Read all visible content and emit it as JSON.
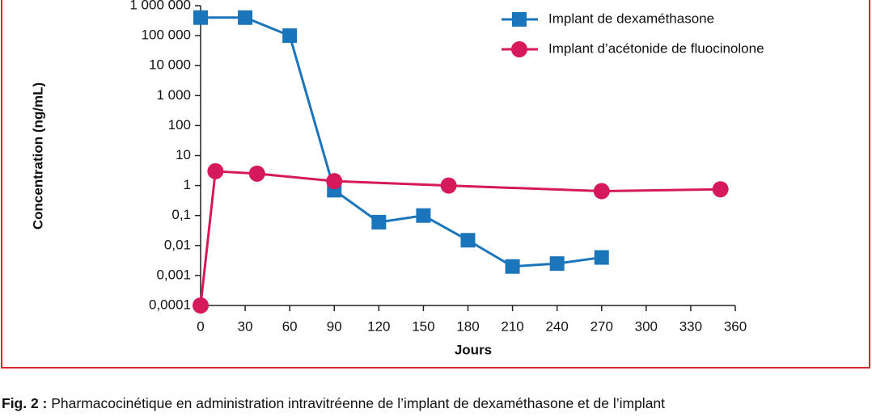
{
  "chart_data": {
    "type": "line",
    "y_scale": "log",
    "xlabel": "Jours",
    "ylabel": "Concentration (ng/mL)",
    "xlim": [
      0,
      360
    ],
    "xticks": [
      0,
      30,
      60,
      90,
      120,
      150,
      180,
      210,
      240,
      270,
      300,
      330,
      360
    ],
    "ylim": [
      0.0001,
      1000000
    ],
    "yticks": [
      {
        "value": 0.0001,
        "label": "0,0001"
      },
      {
        "value": 0.001,
        "label": "0,001"
      },
      {
        "value": 0.01,
        "label": "0,01"
      },
      {
        "value": 0.1,
        "label": "0,1"
      },
      1,
      10,
      100,
      {
        "value": 1000,
        "label": "1 000"
      },
      {
        "value": 10000,
        "label": "10 000"
      },
      {
        "value": 100000,
        "label": "100 000"
      },
      {
        "value": 1000000,
        "label": "1 000 000"
      }
    ],
    "legend_position": "upper right",
    "series": [
      {
        "name": "Implant de dexaméthasone",
        "color": "#1a75bb",
        "marker": "square",
        "x": [
          0,
          30,
          60,
          90,
          120,
          150,
          180,
          210,
          240,
          270
        ],
        "values": [
          400000,
          400000,
          100000,
          0.7,
          0.06,
          0.1,
          0.015,
          0.002,
          0.0025,
          0.004
        ]
      },
      {
        "name": "Implant d’acétonide de fluocinolone",
        "color": "#d6195b",
        "marker": "circle",
        "x": [
          0,
          10,
          38,
          90,
          167,
          270,
          350
        ],
        "values": [
          0.0001,
          3,
          2.5,
          1.4,
          1,
          0.65,
          0.75
        ]
      }
    ],
    "caption": {
      "label": "Fig. 2 :",
      "text": " Pharmacocinétique en administration intravitréenne de l’implant de dexaméthasone et de l’implant"
    }
  }
}
